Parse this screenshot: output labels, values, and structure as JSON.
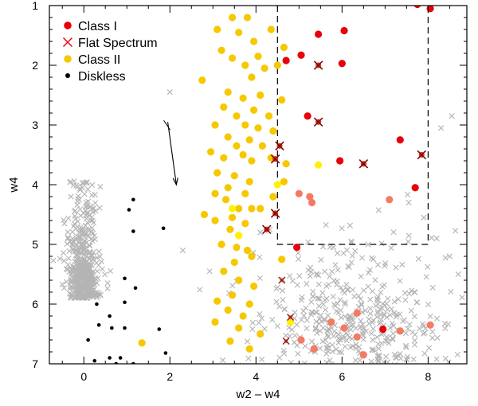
{
  "chart_data": {
    "type": "scatter",
    "xlabel": "w2 – w4",
    "ylabel": "w4",
    "xlim": [
      -0.8,
      8.9
    ],
    "ylim": [
      7.0,
      1.0
    ],
    "y_inverted": true,
    "x_ticks": [
      "0",
      "2",
      "4",
      "6",
      "8"
    ],
    "y_ticks": [
      "1",
      "2",
      "3",
      "4",
      "5",
      "6",
      "7"
    ],
    "legend_position": "top-left",
    "legend": [
      {
        "label": "Class I",
        "marker": "filled-circle",
        "color": "#e8000b"
      },
      {
        "label": "Flat Spectrum",
        "marker": "x",
        "color": "#e8000b"
      },
      {
        "label": "Class II",
        "marker": "filled-circle",
        "color": "#f5c800"
      },
      {
        "label": "Diskless",
        "marker": "small-filled-circle",
        "color": "#000000"
      }
    ],
    "colors": {
      "class1": "#e8000b",
      "class1_light": "#f47a62",
      "flat": "#d40000",
      "flat_dark": "#8a1a1a",
      "class2": "#f5c800",
      "class2_light": "#fff200",
      "diskless": "#000000",
      "background_stars": "#b4b4b4"
    },
    "selection_box": {
      "x": [
        4.5,
        8.0
      ],
      "y": [
        1.0,
        5.0
      ],
      "style": "dashed"
    },
    "reddening_vector": {
      "from": [
        1.95,
        2.95
      ],
      "to": [
        2.15,
        4.0
      ]
    },
    "series": [
      {
        "key": "class1",
        "points": [
          [
            7.75,
            0.98
          ],
          [
            8.05,
            1.05
          ],
          [
            5.45,
            1.48
          ],
          [
            6.05,
            1.42
          ],
          [
            5.05,
            1.83
          ],
          [
            4.7,
            1.92
          ],
          [
            6.0,
            1.97
          ],
          [
            5.2,
            2.85
          ],
          [
            7.35,
            3.25
          ],
          [
            5.95,
            3.6
          ],
          [
            7.7,
            4.05
          ],
          [
            4.95,
            5.05
          ],
          [
            6.95,
            6.42
          ]
        ]
      },
      {
        "key": "class1_light",
        "points": [
          [
            5.0,
            4.15
          ],
          [
            5.25,
            4.2
          ],
          [
            5.3,
            4.3
          ],
          [
            7.1,
            4.25
          ],
          [
            6.35,
            6.15
          ],
          [
            5.75,
            6.3
          ],
          [
            6.05,
            6.4
          ],
          [
            7.35,
            6.45
          ],
          [
            6.35,
            6.55
          ],
          [
            8.05,
            6.35
          ],
          [
            5.05,
            6.6
          ],
          [
            5.35,
            6.75
          ],
          [
            6.5,
            6.85
          ]
        ]
      },
      {
        "key": "flat",
        "points": [
          [
            5.45,
            2.0
          ],
          [
            5.45,
            2.95
          ],
          [
            4.55,
            3.35
          ],
          [
            6.5,
            3.65
          ],
          [
            7.85,
            3.5
          ],
          [
            4.45,
            3.57
          ],
          [
            4.45,
            4.48
          ],
          [
            4.25,
            4.75
          ]
        ]
      },
      {
        "key": "flat_dark",
        "points": [
          [
            4.6,
            5.6
          ],
          [
            4.8,
            6.22
          ],
          [
            4.7,
            6.62
          ]
        ]
      },
      {
        "key": "class2",
        "points": [
          [
            3.45,
            1.2
          ],
          [
            3.8,
            1.2
          ],
          [
            3.1,
            1.4
          ],
          [
            4.35,
            1.4
          ],
          [
            3.6,
            1.45
          ],
          [
            3.95,
            1.6
          ],
          [
            3.2,
            1.75
          ],
          [
            4.65,
            1.7
          ],
          [
            3.45,
            1.88
          ],
          [
            4.05,
            1.85
          ],
          [
            3.75,
            2.0
          ],
          [
            4.5,
            2.0
          ],
          [
            4.2,
            2.05
          ],
          [
            3.9,
            2.2
          ],
          [
            2.75,
            2.25
          ],
          [
            3.35,
            2.45
          ],
          [
            4.1,
            2.5
          ],
          [
            3.7,
            2.55
          ],
          [
            4.6,
            2.58
          ],
          [
            3.25,
            2.7
          ],
          [
            3.95,
            2.75
          ],
          [
            3.55,
            2.85
          ],
          [
            4.3,
            2.85
          ],
          [
            3.05,
            3.0
          ],
          [
            3.75,
            3.0
          ],
          [
            4.05,
            3.05
          ],
          [
            4.4,
            3.1
          ],
          [
            3.35,
            3.2
          ],
          [
            3.85,
            3.25
          ],
          [
            3.55,
            3.35
          ],
          [
            4.15,
            3.35
          ],
          [
            2.95,
            3.45
          ],
          [
            3.7,
            3.5
          ],
          [
            3.25,
            3.55
          ],
          [
            4.35,
            3.55
          ],
          [
            3.9,
            3.6
          ],
          [
            4.7,
            3.65
          ],
          [
            3.1,
            3.8
          ],
          [
            3.5,
            3.85
          ],
          [
            3.85,
            3.95
          ],
          [
            4.65,
            3.95
          ],
          [
            3.35,
            4.05
          ],
          [
            3.05,
            4.15
          ],
          [
            3.75,
            4.15
          ],
          [
            4.4,
            4.2
          ],
          [
            3.3,
            4.25
          ],
          [
            3.6,
            4.4
          ],
          [
            3.9,
            4.4
          ],
          [
            4.1,
            4.4
          ],
          [
            2.8,
            4.5
          ],
          [
            3.45,
            4.55
          ],
          [
            3.05,
            4.6
          ],
          [
            3.75,
            4.65
          ],
          [
            3.4,
            4.75
          ],
          [
            3.6,
            4.85
          ],
          [
            3.2,
            5.0
          ],
          [
            3.55,
            5.05
          ],
          [
            3.8,
            5.1
          ],
          [
            3.9,
            5.2
          ],
          [
            3.5,
            5.3
          ],
          [
            4.6,
            5.25
          ],
          [
            3.25,
            5.45
          ],
          [
            3.6,
            5.6
          ],
          [
            3.95,
            5.7
          ],
          [
            3.45,
            5.85
          ],
          [
            3.1,
            5.95
          ],
          [
            3.85,
            6.0
          ],
          [
            3.35,
            6.1
          ],
          [
            3.7,
            6.2
          ],
          [
            3.05,
            6.3
          ],
          [
            3.6,
            6.4
          ],
          [
            4.1,
            6.5
          ],
          [
            3.4,
            6.62
          ],
          [
            3.85,
            6.75
          ],
          [
            1.35,
            6.65
          ]
        ]
      },
      {
        "key": "class2_light",
        "points": [
          [
            3.6,
            4.85
          ],
          [
            5.45,
            3.67
          ],
          [
            4.5,
            4.0
          ],
          [
            3.45,
            4.4
          ],
          [
            4.8,
            6.3
          ]
        ]
      },
      {
        "key": "diskless",
        "points": [
          [
            1.15,
            4.25
          ],
          [
            1.05,
            4.42
          ],
          [
            1.15,
            4.78
          ],
          [
            1.85,
            4.73
          ],
          [
            0.95,
            5.57
          ],
          [
            1.2,
            5.73
          ],
          [
            0.95,
            5.97
          ],
          [
            0.3,
            6.0
          ],
          [
            0.6,
            6.2
          ],
          [
            0.35,
            6.35
          ],
          [
            0.65,
            6.4
          ],
          [
            0.95,
            6.4
          ],
          [
            1.75,
            6.42
          ],
          [
            0.1,
            6.6
          ],
          [
            1.9,
            6.82
          ],
          [
            0.6,
            6.9
          ],
          [
            0.85,
            6.9
          ],
          [
            0.25,
            6.95
          ],
          [
            0.75,
            7.0
          ],
          [
            1.15,
            7.0
          ]
        ]
      },
      {
        "key": "background",
        "generated_count": 950,
        "note_clusters": [
          {
            "center": [
              0.0,
              5.9
            ],
            "spread": [
              0.18,
              1.2
            ]
          },
          {
            "center": [
              6.3,
              6.4
            ],
            "spread": [
              1.05,
              0.45
            ]
          }
        ],
        "points": [
          [
            2.0,
            2.45
          ],
          [
            2.3,
            5.1
          ],
          [
            -0.3,
            4.2
          ],
          [
            -0.45,
            4.65
          ],
          [
            8.3,
            3.05
          ],
          [
            8.55,
            2.85
          ],
          [
            7.55,
            4.3
          ],
          [
            7.9,
            4.55
          ],
          [
            8.2,
            4.9
          ],
          [
            4.1,
            4.8
          ],
          [
            8.5,
            5.2
          ],
          [
            8.7,
            5.5
          ]
        ]
      }
    ]
  }
}
